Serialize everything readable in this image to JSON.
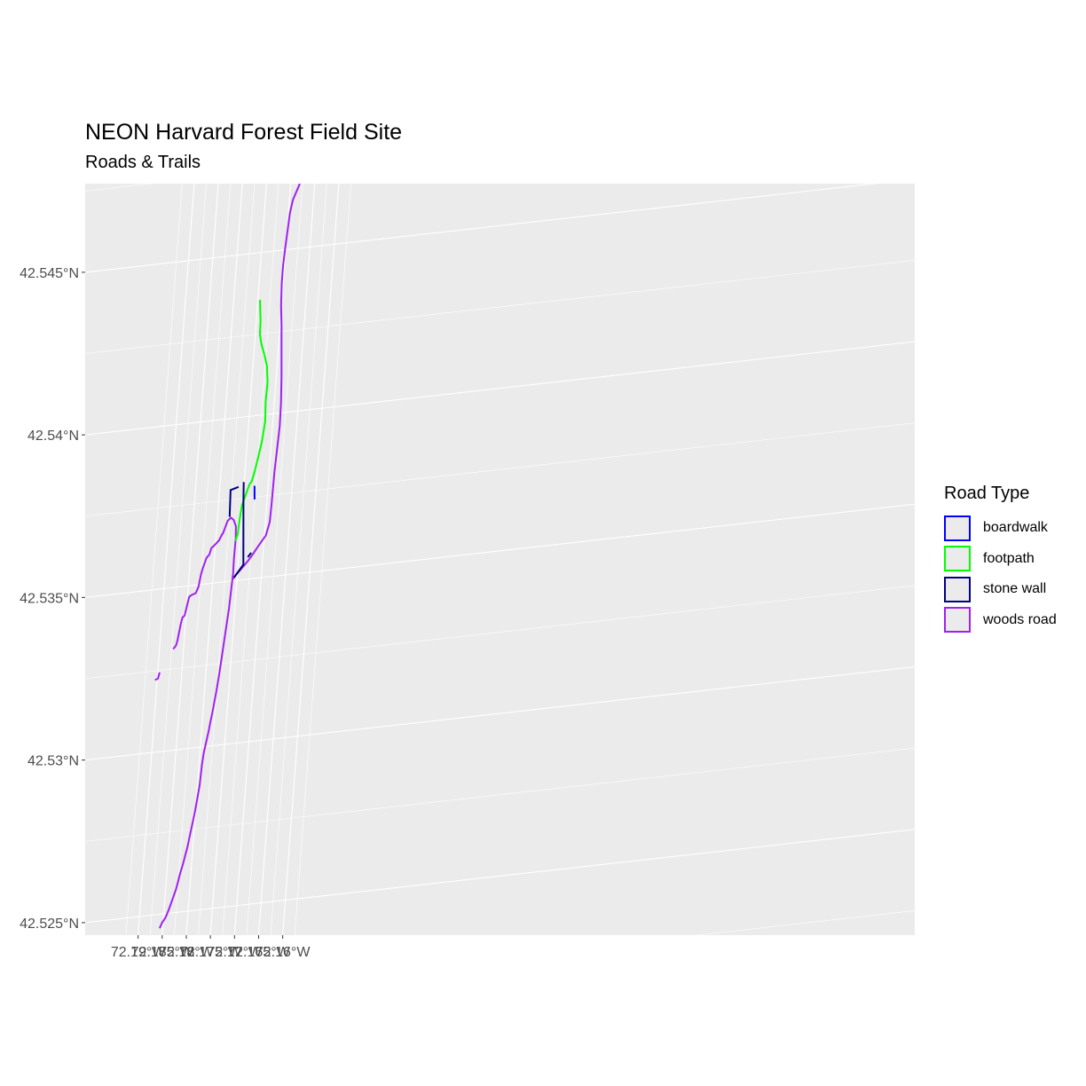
{
  "title": "NEON Harvard Forest Field Site",
  "subtitle": "Roads & Trails",
  "legend": {
    "title": "Road Type",
    "items": [
      {
        "label": "boardwalk",
        "color": "#0000ff"
      },
      {
        "label": "footpath",
        "color": "#00ff00"
      },
      {
        "label": "stone wall",
        "color": "#000080"
      },
      {
        "label": "woods road",
        "color": "#a020f0"
      }
    ]
  },
  "chart_data": {
    "type": "map",
    "title": "NEON Harvard Forest Field Site",
    "subtitle": "Roads & Trails",
    "x_ticks": [
      {
        "lon": -72.19,
        "label": "72.19°W"
      },
      {
        "lon": -72.185,
        "label": "72.185°W"
      },
      {
        "lon": -72.18,
        "label": "72.18°W"
      },
      {
        "lon": -72.175,
        "label": "72.175°W"
      },
      {
        "lon": -72.17,
        "label": "72.17°W"
      },
      {
        "lon": -72.165,
        "label": "72.165°W"
      },
      {
        "lon": -72.16,
        "label": "72.16°W"
      }
    ],
    "y_ticks": [
      {
        "lat": 42.545,
        "label": "42.545°N"
      },
      {
        "lat": 42.54,
        "label": "42.54°N"
      },
      {
        "lat": 42.535,
        "label": "42.535°N"
      },
      {
        "lat": 42.53,
        "label": "42.53°N"
      },
      {
        "lat": 42.525,
        "label": "42.525°N"
      }
    ],
    "lon_range": [
      -72.1913,
      -72.1572
    ],
    "lat_range": [
      42.5244,
      42.5472
    ],
    "grid": true,
    "legend_position": "right",
    "series": [
      {
        "name": "woods road",
        "color": "#a020f0",
        "lines": [
          [
            [
              -72.19045,
              42.53222
            ],
            [
              -72.18985,
              42.53225
            ],
            [
              -72.18965,
              42.53241
            ],
            [
              -72.1895,
              42.53243
            ]
          ],
          [
            [
              -72.18715,
              42.53311
            ],
            [
              -72.18665,
              42.5332
            ],
            [
              -72.1864,
              42.53334
            ],
            [
              -72.18595,
              42.53386
            ],
            [
              -72.1857,
              42.53405
            ],
            [
              -72.1853,
              42.5341
            ],
            [
              -72.18495,
              42.5344
            ],
            [
              -72.18465,
              42.53466
            ],
            [
              -72.18425,
              42.5347
            ],
            [
              -72.18335,
              42.53475
            ],
            [
              -72.18285,
              42.53494
            ],
            [
              -72.18255,
              42.53531
            ],
            [
              -72.18225,
              42.5355
            ],
            [
              -72.18165,
              42.5358
            ],
            [
              -72.1811,
              42.53589
            ],
            [
              -72.1808,
              42.53608
            ],
            [
              -72.18025,
              42.53615
            ],
            [
              -72.17965,
              42.53624
            ],
            [
              -72.1793,
              42.5363
            ],
            [
              -72.1788,
              42.53646
            ],
            [
              -72.1786,
              42.5365
            ],
            [
              -72.1782,
              42.53669
            ],
            [
              -72.17785,
              42.53686
            ],
            [
              -72.1772,
              42.53695
            ],
            [
              -72.1766,
              42.53687
            ],
            [
              -72.17605,
              42.53667
            ],
            [
              -72.1759,
              42.5363
            ],
            [
              -72.17595,
              42.53565
            ],
            [
              -72.1759,
              42.53522
            ],
            [
              -72.1762,
              42.53417
            ],
            [
              -72.17665,
              42.5333
            ],
            [
              -72.17705,
              42.5325
            ],
            [
              -72.1772,
              42.5322
            ],
            [
              -72.17755,
              42.53165
            ],
            [
              -72.17805,
              42.531
            ],
            [
              -72.17835,
              42.5307
            ],
            [
              -72.1785,
              42.53048
            ],
            [
              -72.17885,
              42.53015
            ],
            [
              -72.1792,
              42.5298
            ],
            [
              -72.1794,
              42.52945
            ],
            [
              -72.17955,
              42.52885
            ],
            [
              -72.17985,
              42.52842
            ],
            [
              -72.18015,
              42.528
            ],
            [
              -72.1807,
              42.52742
            ],
            [
              -72.1811,
              42.527
            ],
            [
              -72.18175,
              42.5265
            ],
            [
              -72.18225,
              42.52617
            ],
            [
              -72.1828,
              42.52574
            ],
            [
              -72.18345,
              42.5254
            ],
            [
              -72.18405,
              42.5251
            ],
            [
              -72.1846,
              42.52487
            ],
            [
              -72.1852,
              42.52474
            ],
            [
              -72.18565,
              42.52457
            ]
          ],
          [
            [
              -72.1759,
              42.53505
            ],
            [
              -72.1751,
              42.5352
            ],
            [
              -72.17405,
              42.53538
            ],
            [
              -72.1729,
              42.53558
            ],
            [
              -72.17215,
              42.53574
            ],
            [
              -72.17145,
              42.5359
            ],
            [
              -72.17065,
              42.53608
            ],
            [
              -72.1697,
              42.53628
            ],
            [
              -72.1691,
              42.53668
            ],
            [
              -72.169,
              42.5372
            ],
            [
              -72.1689,
              42.5382
            ],
            [
              -72.1687,
              42.5389
            ],
            [
              -72.1685,
              42.5396
            ],
            [
              -72.1686,
              42.5403
            ],
            [
              -72.1689,
              42.5411
            ],
            [
              -72.1693,
              42.5419
            ],
            [
              -72.1697,
              42.5427
            ],
            [
              -72.1701,
              42.5433
            ],
            [
              -72.1703,
              42.544
            ],
            [
              -72.1703,
              42.5445
            ],
            [
              -72.1701,
              42.5451
            ],
            [
              -72.1699,
              42.5456
            ],
            [
              -72.1697,
              42.5461
            ],
            [
              -72.1693,
              42.5465
            ],
            [
              -72.1688,
              42.5467
            ],
            [
              -72.1683,
              42.5469
            ],
            [
              -72.1679,
              42.5471
            ],
            [
              -72.1671,
              42.5472
            ],
            [
              -72.1659,
              42.5473
            ],
            [
              -72.1648,
              42.5475
            ],
            [
              -72.1637,
              42.5477
            ],
            [
              -72.1623,
              42.54795
            ],
            [
              -72.1613,
              42.5481
            ],
            [
              -72.1604,
              42.5481
            ],
            [
              -72.15965,
              42.5479
            ],
            [
              -72.1589,
              42.5474
            ]
          ]
        ]
      },
      {
        "name": "footpath",
        "color": "#00ff00",
        "lines": [
          [
            [
              -72.17592,
              42.53622
            ],
            [
              -72.17555,
              42.53642
            ],
            [
              -72.17535,
              42.5369
            ],
            [
              -72.1751,
              42.5373
            ],
            [
              -72.1745,
              42.5376
            ],
            [
              -72.1739,
              42.5379
            ],
            [
              -72.17345,
              42.538
            ],
            [
              -72.173,
              42.5383
            ],
            [
              -72.1725,
              42.5387
            ],
            [
              -72.17195,
              42.5392
            ],
            [
              -72.1716,
              42.5398
            ],
            [
              -72.1718,
              42.5404
            ],
            [
              -72.1717,
              42.541
            ],
            [
              -72.1721,
              42.5415
            ],
            [
              -72.1727,
              42.5418
            ],
            [
              -72.1736,
              42.5422
            ],
            [
              -72.17405,
              42.5425
            ],
            [
              -72.1741,
              42.5429
            ],
            [
              -72.1744,
              42.5433
            ],
            [
              -72.17455,
              42.54355
            ]
          ]
        ]
      },
      {
        "name": "stone wall",
        "color": "#000080",
        "lines": [
          [
            [
              -72.17565,
              42.5351
            ],
            [
              -72.1739,
              42.53546
            ],
            [
              -72.1749,
              42.5375
            ],
            [
              -72.1751,
              42.538
            ]
          ],
          [
            [
              -72.1761,
              42.53787
            ],
            [
              -72.1777,
              42.5378
            ],
            [
              -72.1775,
              42.53698
            ]
          ],
          [
            [
              -72.1731,
              42.53568
            ],
            [
              -72.17245,
              42.5358
            ]
          ]
        ]
      },
      {
        "name": "boardwalk",
        "color": "#0000ff",
        "lines": [
          [
            [
              -72.1728,
              42.53785
            ],
            [
              -72.1726,
              42.53745
            ],
            [
              -72.1725,
              42.53743
            ]
          ]
        ]
      }
    ]
  }
}
